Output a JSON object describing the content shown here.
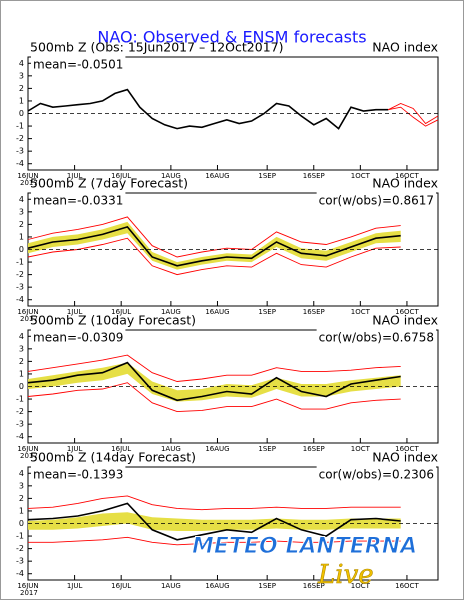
{
  "title": "NAO: Observed & ENSM forecasts",
  "watermark": "METEO LANTERNA",
  "watermark_sub": "Live",
  "chart_data": [
    {
      "type": "line",
      "title": "500mb Z (Obs: 15Jun2017 – 12Oct2017)",
      "right_label": "NAO index",
      "mean_label": "mean=-0.0501",
      "x": [
        0,
        4,
        8,
        12,
        16,
        20,
        24,
        28,
        32,
        36,
        40,
        44,
        48,
        52,
        56,
        60,
        64,
        68,
        72,
        76,
        80,
        84,
        88,
        92,
        96,
        100,
        104,
        108,
        112,
        116,
        120,
        124,
        128,
        132
      ],
      "series": [
        {
          "color": "#000000",
          "values": [
            0.2,
            0.8,
            0.5,
            0.6,
            0.7,
            0.8,
            1.0,
            1.6,
            1.9,
            0.5,
            -0.4,
            -0.9,
            -1.2,
            -1.0,
            -1.1,
            -0.8,
            -0.5,
            -0.8,
            -0.6,
            0.0,
            0.8,
            0.6,
            -0.2,
            -0.9,
            -0.4,
            -1.2,
            0.5,
            0.2,
            0.3,
            0.3,
            null,
            null,
            null,
            null
          ]
        },
        {
          "color": "#ff0000",
          "values": [
            null,
            null,
            null,
            null,
            null,
            null,
            null,
            null,
            null,
            null,
            null,
            null,
            null,
            null,
            null,
            null,
            null,
            null,
            null,
            null,
            null,
            null,
            null,
            null,
            null,
            null,
            null,
            null,
            null,
            0.3,
            0.8,
            0.4,
            -0.8,
            -0.2
          ]
        },
        {
          "color": "#ff0000",
          "values": [
            null,
            null,
            null,
            null,
            null,
            null,
            null,
            null,
            null,
            null,
            null,
            null,
            null,
            null,
            null,
            null,
            null,
            null,
            null,
            null,
            null,
            null,
            null,
            null,
            null,
            null,
            null,
            null,
            null,
            0.3,
            0.5,
            -0.3,
            -1.0,
            -0.5
          ]
        }
      ],
      "xlim": [
        0,
        132
      ],
      "ylim": [
        -4.5,
        4.5
      ],
      "yticks": [
        4,
        3,
        2,
        1,
        0,
        -1,
        -2,
        -3,
        -4
      ],
      "zero_line": true,
      "year_label": "2017",
      "xticks": [
        {
          "value": 0,
          "label": "16JUN"
        },
        {
          "value": 15,
          "label": "1JUL"
        },
        {
          "value": 30,
          "label": "16JUL"
        },
        {
          "value": 46,
          "label": "1AUG"
        },
        {
          "value": 61,
          "label": "16AUG"
        },
        {
          "value": 77,
          "label": "1SEP"
        },
        {
          "value": 92,
          "label": "16SEP"
        },
        {
          "value": 107,
          "label": "1OCT"
        },
        {
          "value": 122,
          "label": "16OCT"
        }
      ]
    },
    {
      "type": "line",
      "title": "500mb Z (7day Forecast)",
      "right_label": "NAO index",
      "mean_label": "mean=-0.0331",
      "cor_label": "cor(w/obs)=0.8617",
      "x": [
        0,
        8,
        16,
        24,
        32,
        40,
        48,
        56,
        64,
        72,
        80,
        88,
        96,
        104,
        112,
        120
      ],
      "series": [
        {
          "type": "band",
          "color": "#e6df45",
          "low": [
            -0.3,
            0.2,
            0.4,
            0.8,
            1.3,
            -0.9,
            -1.6,
            -1.2,
            -0.9,
            -1.0,
            0.2,
            -0.7,
            -0.9,
            -0.2,
            0.5,
            0.6
          ],
          "high": [
            0.5,
            1.0,
            1.2,
            1.6,
            2.2,
            -0.2,
            -1.0,
            -0.6,
            -0.3,
            -0.4,
            1.0,
            0.1,
            -0.1,
            0.6,
            1.3,
            1.5
          ]
        },
        {
          "color": "#ff0000",
          "values": [
            -0.6,
            -0.2,
            0.0,
            0.4,
            0.9,
            -1.3,
            -2.0,
            -1.6,
            -1.3,
            -1.4,
            -0.3,
            -1.2,
            -1.4,
            -0.6,
            0.1,
            0.2
          ]
        },
        {
          "color": "#ff0000",
          "values": [
            0.8,
            1.3,
            1.6,
            2.0,
            2.6,
            0.3,
            -0.6,
            -0.2,
            0.1,
            0.0,
            1.4,
            0.6,
            0.4,
            1.0,
            1.7,
            1.9
          ]
        },
        {
          "color": "#000000",
          "values": [
            0.1,
            0.6,
            0.8,
            1.2,
            1.8,
            -0.6,
            -1.3,
            -0.9,
            -0.6,
            -0.7,
            0.6,
            -0.3,
            -0.5,
            0.2,
            0.9,
            1.1
          ]
        }
      ],
      "xlim": [
        0,
        132
      ],
      "ylim": [
        -4.5,
        4.5
      ],
      "yticks": [
        4,
        3,
        2,
        1,
        0,
        -1,
        -2,
        -3,
        -4
      ],
      "zero_line": true,
      "year_label": "2017",
      "xticks": [
        {
          "value": 0,
          "label": "16JUN"
        },
        {
          "value": 15,
          "label": "1JUL"
        },
        {
          "value": 30,
          "label": "16JUL"
        },
        {
          "value": 46,
          "label": "1AUG"
        },
        {
          "value": 61,
          "label": "16AUG"
        },
        {
          "value": 77,
          "label": "1SEP"
        },
        {
          "value": 92,
          "label": "16SEP"
        },
        {
          "value": 107,
          "label": "1OCT"
        },
        {
          "value": 122,
          "label": "16OCT"
        }
      ]
    },
    {
      "type": "line",
      "title": "500mb Z (10day Forecast)",
      "right_label": "NAO index",
      "mean_label": "mean=-0.0309",
      "cor_label": "cor(w/obs)=0.6758",
      "x": [
        0,
        8,
        16,
        24,
        32,
        40,
        48,
        56,
        64,
        72,
        80,
        88,
        96,
        104,
        112,
        120
      ],
      "series": [
        {
          "type": "band",
          "color": "#e6df45",
          "low": [
            -0.2,
            0.0,
            0.3,
            0.5,
            1.0,
            -0.6,
            -1.2,
            -1.1,
            -0.8,
            -0.9,
            -0.2,
            -0.8,
            -0.8,
            -0.4,
            -0.2,
            0.0
          ],
          "high": [
            0.6,
            0.9,
            1.2,
            1.5,
            1.9,
            0.4,
            -0.3,
            -0.2,
            0.2,
            0.1,
            0.7,
            0.2,
            0.2,
            0.5,
            0.7,
            0.9
          ]
        },
        {
          "color": "#ff0000",
          "values": [
            -0.8,
            -0.6,
            -0.3,
            -0.2,
            0.3,
            -1.3,
            -2.0,
            -1.9,
            -1.6,
            -1.6,
            -1.0,
            -1.8,
            -1.8,
            -1.3,
            -1.1,
            -1.0
          ]
        },
        {
          "color": "#ff0000",
          "values": [
            1.2,
            1.5,
            1.8,
            2.1,
            2.5,
            1.1,
            0.4,
            0.6,
            0.9,
            0.9,
            1.5,
            1.2,
            1.2,
            1.3,
            1.5,
            1.6
          ]
        },
        {
          "color": "#000000",
          "values": [
            0.3,
            0.5,
            0.9,
            1.1,
            1.9,
            -0.3,
            -1.1,
            -0.8,
            -0.4,
            -0.6,
            0.7,
            -0.4,
            -0.8,
            0.2,
            0.5,
            0.8
          ]
        }
      ],
      "xlim": [
        0,
        132
      ],
      "ylim": [
        -4.5,
        4.5
      ],
      "yticks": [
        4,
        3,
        2,
        1,
        0,
        -1,
        -2,
        -3,
        -4
      ],
      "zero_line": true,
      "year_label": "2017",
      "xticks": [
        {
          "value": 0,
          "label": "16JUN"
        },
        {
          "value": 15,
          "label": "1JUL"
        },
        {
          "value": 30,
          "label": "16JUL"
        },
        {
          "value": 46,
          "label": "1AUG"
        },
        {
          "value": 61,
          "label": "16AUG"
        },
        {
          "value": 77,
          "label": "1SEP"
        },
        {
          "value": 92,
          "label": "16SEP"
        },
        {
          "value": 107,
          "label": "1OCT"
        },
        {
          "value": 122,
          "label": "16OCT"
        }
      ]
    },
    {
      "type": "line",
      "title": "500mb Z (14day Forecast)",
      "right_label": "NAO index",
      "mean_label": "mean=-0.1393",
      "cor_label": "cor(w/obs)=0.2306",
      "x": [
        0,
        8,
        16,
        24,
        32,
        40,
        48,
        56,
        64,
        72,
        80,
        88,
        96,
        104,
        112,
        120
      ],
      "series": [
        {
          "type": "band",
          "color": "#e6df45",
          "low": [
            -0.5,
            -0.5,
            -0.4,
            -0.2,
            0.0,
            -0.5,
            -0.6,
            -0.6,
            -0.5,
            -0.5,
            -0.4,
            -0.5,
            -0.5,
            -0.4,
            -0.4,
            -0.4
          ],
          "high": [
            0.2,
            0.3,
            0.5,
            0.8,
            0.9,
            0.5,
            0.4,
            0.3,
            0.3,
            0.3,
            0.4,
            0.3,
            0.3,
            0.4,
            0.4,
            0.4
          ]
        },
        {
          "color": "#ff0000",
          "values": [
            -1.5,
            -1.5,
            -1.4,
            -1.3,
            -1.1,
            -1.5,
            -1.7,
            -1.6,
            -1.5,
            -1.5,
            -1.4,
            -1.5,
            -1.5,
            -1.4,
            -1.4,
            -1.4
          ]
        },
        {
          "color": "#ff0000",
          "values": [
            1.2,
            1.3,
            1.6,
            2.0,
            2.2,
            1.5,
            1.2,
            1.1,
            1.2,
            1.2,
            1.3,
            1.2,
            1.2,
            1.3,
            1.3,
            1.3
          ]
        },
        {
          "color": "#000000",
          "values": [
            0.3,
            0.4,
            0.6,
            1.0,
            1.6,
            -0.5,
            -1.3,
            -0.9,
            -0.5,
            -0.7,
            0.4,
            -0.5,
            -1.0,
            0.3,
            0.4,
            0.2
          ]
        }
      ],
      "xlim": [
        0,
        132
      ],
      "ylim": [
        -4.5,
        4.5
      ],
      "yticks": [
        4,
        3,
        2,
        1,
        0,
        -1,
        -2,
        -3,
        -4
      ],
      "zero_line": true,
      "year_label": "2017",
      "xticks": [
        {
          "value": 0,
          "label": "16JUN"
        },
        {
          "value": 15,
          "label": "1JUL"
        },
        {
          "value": 30,
          "label": "16JUL"
        },
        {
          "value": 46,
          "label": "1AUG"
        },
        {
          "value": 61,
          "label": "16AUG"
        },
        {
          "value": 77,
          "label": "1SEP"
        },
        {
          "value": 92,
          "label": "16SEP"
        },
        {
          "value": 107,
          "label": "1OCT"
        },
        {
          "value": 122,
          "label": "16OCT"
        }
      ]
    }
  ]
}
